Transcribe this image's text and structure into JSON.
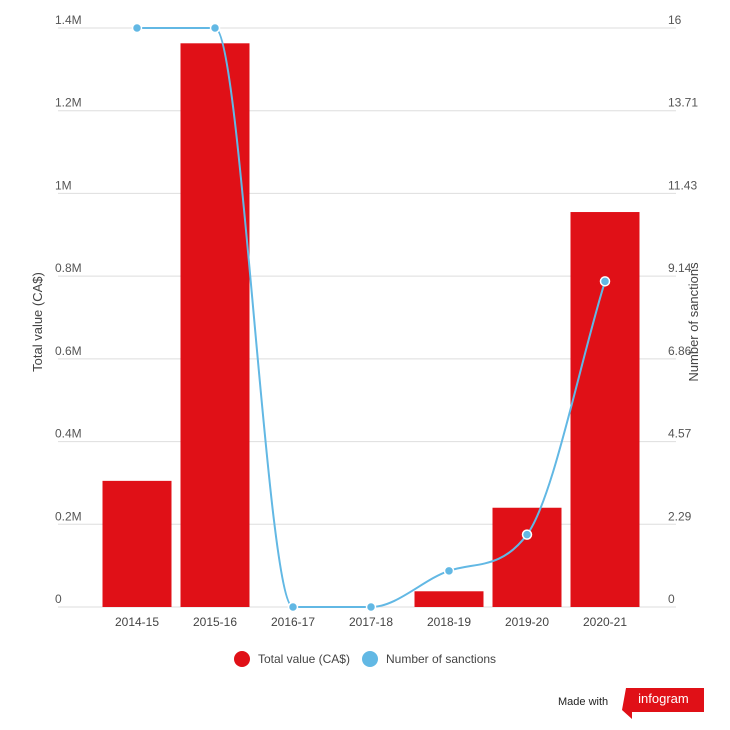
{
  "chart_data": {
    "type": "bar",
    "categories": [
      "2014-15",
      "2015-16",
      "2016-17",
      "2017-18",
      "2018-19",
      "2019-20",
      "2020-21"
    ],
    "series": [
      {
        "name": "Total value (CA$)",
        "type": "bar",
        "axis": "left",
        "color": "#e01017",
        "values": [
          305000,
          1363000,
          0,
          0,
          38000,
          240000,
          955000
        ]
      },
      {
        "name": "Number of sanctions",
        "type": "line",
        "axis": "right",
        "color": "#62b8e4",
        "values": [
          16,
          16,
          0,
          0,
          1,
          2,
          9
        ]
      }
    ],
    "ylabel": "Total value (CA$)",
    "y2label": "Number of sanctions",
    "ylim": [
      0,
      1400000
    ],
    "y2lim": [
      0,
      16
    ],
    "yticks": [
      "0",
      "0.2M",
      "0.4M",
      "0.6M",
      "0.8M",
      "1M",
      "1.2M",
      "1.4M"
    ],
    "y2ticks": [
      "0",
      "2.29",
      "4.57",
      "6.86",
      "9.14",
      "11.43",
      "13.71",
      "16"
    ],
    "grid": true,
    "legend_position": "bottom"
  },
  "legend": [
    {
      "label": "Total value (CA$)",
      "color": "#e01017"
    },
    {
      "label": "Number of sanctions",
      "color": "#62b8e4"
    }
  ],
  "branding": {
    "made_with": "Made with",
    "logo_text": "infogram",
    "logo_color": "#e01017"
  }
}
